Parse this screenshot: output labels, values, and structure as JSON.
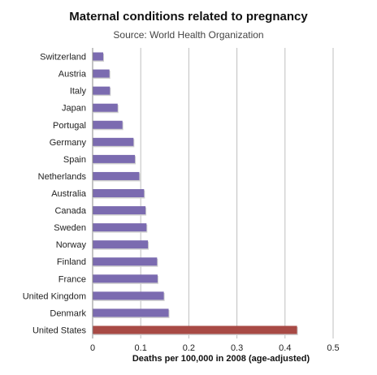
{
  "chart_data": {
    "type": "bar",
    "orientation": "horizontal",
    "title": "Maternal conditions related to pregnancy",
    "subtitle": "Source: World Health Organization",
    "xlabel": "Deaths per 100,000 in 2008 (age-adjusted)",
    "ylabel": "",
    "xlim": [
      0,
      0.5
    ],
    "xticks": [
      "0",
      "0.1",
      "0.2",
      "0.3",
      "0.4",
      "0.5"
    ],
    "grid": true,
    "categories": [
      "Switzerland",
      "Austria",
      "Italy",
      "Japan",
      "Portugal",
      "Germany",
      "Spain",
      "Netherlands",
      "Australia",
      "Canada",
      "Sweden",
      "Norway",
      "Finland",
      "France",
      "United Kingdom",
      "Denmark",
      "United States"
    ],
    "values": [
      0.022,
      0.035,
      0.036,
      0.052,
      0.062,
      0.085,
      0.088,
      0.097,
      0.107,
      0.11,
      0.112,
      0.115,
      0.134,
      0.135,
      0.148,
      0.158,
      0.425
    ],
    "colors": {
      "default": "#7b6bb0",
      "highlight": "#a84a45",
      "grid": "#bfbfbf",
      "axis": "#888888"
    },
    "highlight_category": "United States"
  }
}
